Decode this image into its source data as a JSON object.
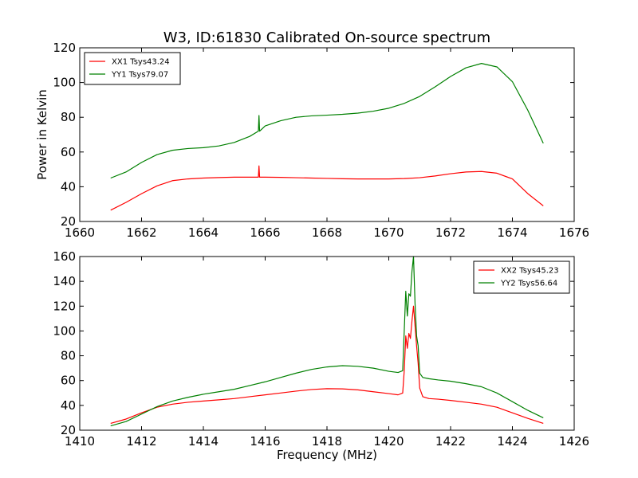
{
  "figure": {
    "title": "W3, ID:61830 Calibrated On-source spectrum"
  },
  "chart_data": [
    {
      "type": "line",
      "title": "W3, ID:61830 Calibrated On-source spectrum",
      "xlabel": "",
      "ylabel": "Power in Kelvin",
      "xlim": [
        1660,
        1676
      ],
      "ylim": [
        20,
        120
      ],
      "xticks": [
        1660,
        1662,
        1664,
        1666,
        1668,
        1670,
        1672,
        1674,
        1676
      ],
      "yticks": [
        20,
        40,
        60,
        80,
        100,
        120
      ],
      "grid": false,
      "legend_position": "top-left",
      "series": [
        {
          "name": "XX1 Tsys43.24",
          "color": "#ff0000",
          "x": [
            1661.0,
            1661.5,
            1662.0,
            1662.5,
            1663.0,
            1663.5,
            1664.0,
            1664.5,
            1665.0,
            1665.5,
            1665.78,
            1665.8,
            1665.82,
            1666.0,
            1666.5,
            1667.0,
            1667.5,
            1668.0,
            1668.5,
            1669.0,
            1669.5,
            1670.0,
            1670.5,
            1671.0,
            1671.5,
            1672.0,
            1672.5,
            1673.0,
            1673.5,
            1674.0,
            1674.5,
            1675.0
          ],
          "y": [
            26.5,
            31.0,
            36.0,
            40.5,
            43.5,
            44.5,
            45.0,
            45.3,
            45.5,
            45.5,
            45.5,
            52.0,
            45.5,
            45.5,
            45.4,
            45.2,
            45.0,
            44.8,
            44.6,
            44.5,
            44.5,
            44.5,
            44.7,
            45.2,
            46.2,
            47.5,
            48.5,
            48.8,
            47.8,
            44.5,
            36.0,
            29.0
          ]
        },
        {
          "name": "YY1 Tsys79.07",
          "color": "#008000",
          "x": [
            1661.0,
            1661.5,
            1662.0,
            1662.5,
            1663.0,
            1663.5,
            1664.0,
            1664.5,
            1665.0,
            1665.5,
            1665.78,
            1665.8,
            1665.82,
            1666.0,
            1666.5,
            1667.0,
            1667.5,
            1668.0,
            1668.5,
            1669.0,
            1669.5,
            1670.0,
            1670.5,
            1671.0,
            1671.5,
            1672.0,
            1672.5,
            1673.0,
            1673.5,
            1674.0,
            1674.5,
            1675.0
          ],
          "y": [
            45.0,
            48.5,
            54.0,
            58.5,
            61.0,
            62.0,
            62.5,
            63.5,
            65.5,
            69.0,
            72.0,
            81.0,
            72.0,
            75.0,
            78.0,
            80.0,
            80.8,
            81.2,
            81.7,
            82.4,
            83.5,
            85.2,
            88.0,
            92.0,
            97.5,
            103.5,
            108.5,
            111.0,
            109.0,
            100.5,
            84.0,
            65.0
          ]
        }
      ]
    },
    {
      "type": "line",
      "title": "",
      "xlabel": "Frequency (MHz)",
      "ylabel": "",
      "xlim": [
        1410,
        1426
      ],
      "ylim": [
        20,
        160
      ],
      "xticks": [
        1410,
        1412,
        1414,
        1416,
        1418,
        1420,
        1422,
        1424,
        1426
      ],
      "yticks": [
        20,
        40,
        60,
        80,
        100,
        120,
        140,
        160
      ],
      "grid": false,
      "legend_position": "top-right",
      "series": [
        {
          "name": "XX2 Tsys45.23",
          "color": "#ff0000",
          "x": [
            1411.0,
            1411.5,
            1412.0,
            1412.5,
            1413.0,
            1413.5,
            1414.0,
            1414.5,
            1415.0,
            1415.5,
            1416.0,
            1416.5,
            1417.0,
            1417.5,
            1418.0,
            1418.5,
            1419.0,
            1419.5,
            1420.0,
            1420.3,
            1420.45,
            1420.5,
            1420.55,
            1420.6,
            1420.65,
            1420.7,
            1420.75,
            1420.8,
            1420.85,
            1420.9,
            1420.95,
            1421.0,
            1421.1,
            1421.3,
            1421.6,
            1422.0,
            1422.5,
            1423.0,
            1423.5,
            1424.0,
            1424.5,
            1425.0
          ],
          "y": [
            25.5,
            29.0,
            34.0,
            38.5,
            41.0,
            42.5,
            43.5,
            44.5,
            45.5,
            47.0,
            48.5,
            50.0,
            51.5,
            52.8,
            53.5,
            53.3,
            52.5,
            51.0,
            49.5,
            48.5,
            50.0,
            68.0,
            96.0,
            86.0,
            98.0,
            94.0,
            108.0,
            120.0,
            104.0,
            88.0,
            74.0,
            54.0,
            47.0,
            45.5,
            45.0,
            44.0,
            42.5,
            41.0,
            38.5,
            34.0,
            29.5,
            25.5
          ]
        },
        {
          "name": "YY2 Tsys56.64",
          "color": "#008000",
          "x": [
            1411.0,
            1411.5,
            1412.0,
            1412.5,
            1413.0,
            1413.5,
            1414.0,
            1414.5,
            1415.0,
            1415.5,
            1416.0,
            1416.5,
            1417.0,
            1417.5,
            1418.0,
            1418.5,
            1419.0,
            1419.5,
            1420.0,
            1420.3,
            1420.45,
            1420.5,
            1420.55,
            1420.6,
            1420.65,
            1420.7,
            1420.75,
            1420.8,
            1420.85,
            1420.9,
            1420.95,
            1421.0,
            1421.1,
            1421.3,
            1421.6,
            1422.0,
            1422.5,
            1423.0,
            1423.5,
            1424.0,
            1424.5,
            1425.0
          ],
          "y": [
            23.5,
            27.0,
            33.0,
            39.0,
            43.5,
            46.5,
            49.0,
            51.0,
            53.0,
            56.0,
            59.0,
            62.5,
            66.0,
            69.0,
            71.0,
            72.0,
            71.5,
            70.0,
            67.5,
            66.5,
            68.0,
            100.0,
            132.0,
            112.0,
            130.0,
            128.0,
            148.0,
            160.0,
            122.0,
            96.0,
            88.0,
            66.0,
            62.5,
            61.5,
            60.5,
            59.5,
            57.5,
            55.0,
            50.0,
            43.0,
            36.0,
            30.0
          ]
        }
      ]
    }
  ]
}
